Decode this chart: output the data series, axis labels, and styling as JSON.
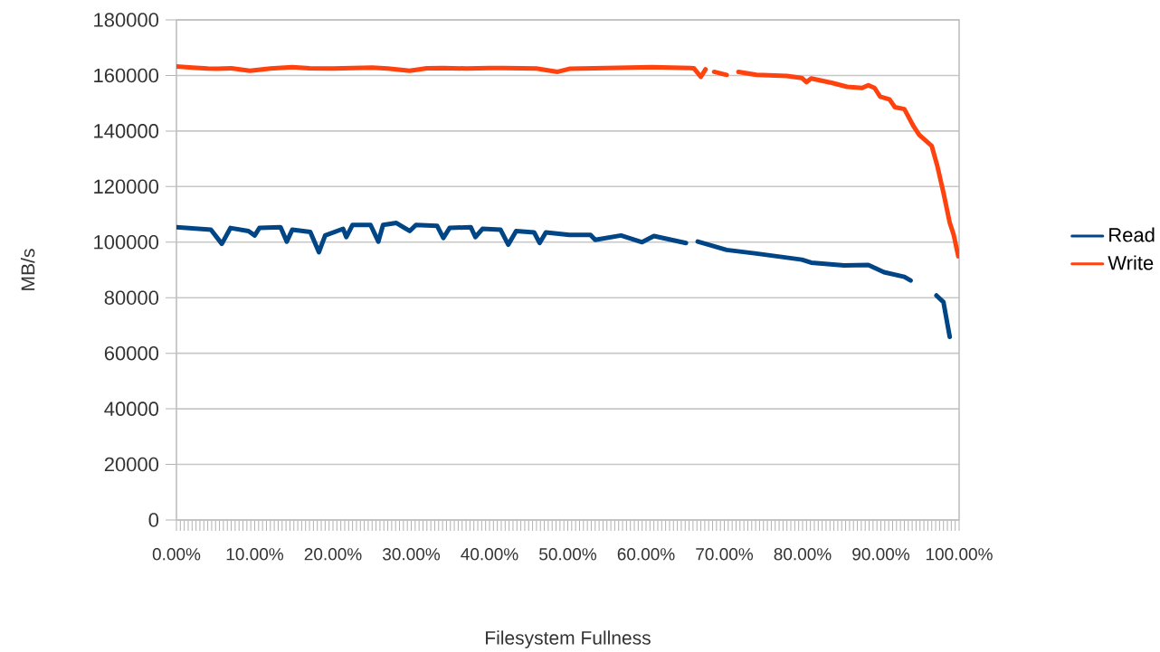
{
  "chart_data": {
    "type": "line",
    "xlabel": "Filesystem Fullness",
    "ylabel": "MB/s",
    "xlim": [
      0,
      100
    ],
    "ylim": [
      0,
      180000
    ],
    "xticks": [
      {
        "value": 0,
        "label": "0.00%"
      },
      {
        "value": 10,
        "label": "10.00%"
      },
      {
        "value": 20,
        "label": "20.00%"
      },
      {
        "value": 30,
        "label": "30.00%"
      },
      {
        "value": 40,
        "label": "40.00%"
      },
      {
        "value": 50,
        "label": "50.00%"
      },
      {
        "value": 60,
        "label": "60.00%"
      },
      {
        "value": 70,
        "label": "70.00%"
      },
      {
        "value": 80,
        "label": "80.00%"
      },
      {
        "value": 90,
        "label": "90.00%"
      },
      {
        "value": 100,
        "label": "100.00%"
      }
    ],
    "yticks": [
      0,
      20000,
      40000,
      60000,
      80000,
      100000,
      120000,
      140000,
      160000,
      180000
    ],
    "grid": "y",
    "legend": "right",
    "line_style": "solid",
    "series": [
      {
        "name": "Read",
        "color": "#004586",
        "x": [
          0,
          4.4,
          5.8,
          6.9,
          9.2,
          10.0,
          10.6,
          13.3,
          14.1,
          14.8,
          17.1,
          18.2,
          19.0,
          21.3,
          21.7,
          22.5,
          24.8,
          25.8,
          26.4,
          28.1,
          29.8,
          30.6,
          33.3,
          34.1,
          34.9,
          37.6,
          38.2,
          39.1,
          41.4,
          42.4,
          43.4,
          45.7,
          46.4,
          47.2,
          50.2,
          52.9,
          53.5,
          56.8,
          59.5,
          61.0,
          65.1,
          65.8,
          66.6,
          70.3,
          74.1,
          79.9,
          81.1,
          85.3,
          88.4,
          90.4,
          93.0,
          93.8,
          95.5,
          97.1,
          98.0,
          98.8
        ],
        "values": [
          105400,
          104500,
          99400,
          105100,
          104000,
          102400,
          105100,
          105400,
          100200,
          104500,
          103700,
          96400,
          102400,
          104800,
          101800,
          106200,
          106200,
          100200,
          106200,
          106900,
          104000,
          106200,
          105900,
          101500,
          105100,
          105400,
          101800,
          104800,
          104500,
          99100,
          104000,
          103500,
          99700,
          103500,
          102600,
          102600,
          100800,
          102400,
          100000,
          102200,
          99700,
          null,
          100200,
          97200,
          95900,
          93700,
          92600,
          91600,
          91800,
          89200,
          87500,
          86200,
          null,
          80800,
          78400,
          65900
        ]
      },
      {
        "name": "Write",
        "color": "#ff420e",
        "x": [
          0,
          2,
          4,
          5.2,
          7,
          9.4,
          12,
          14.8,
          17,
          20,
          22.5,
          25,
          27,
          29.8,
          32,
          34.1,
          37,
          40,
          41.8,
          44,
          46,
          48.7,
          50.2,
          54.9,
          60.7,
          66.1,
          67.0,
          67.6,
          68.1,
          68.7,
          70.3,
          71.0,
          71.8,
          74.1,
          78.0,
          79.9,
          80.5,
          81.1,
          83.8,
          85.7,
          87.6,
          88.4,
          89.2,
          89.9,
          91.1,
          91.8,
          93.0,
          94.2,
          94.9,
          96.5,
          97.2,
          98.0,
          98.8,
          99.3,
          99.9
        ],
        "values": [
          163200,
          162800,
          162500,
          162400,
          162600,
          161700,
          162500,
          163000,
          162600,
          162500,
          162700,
          162800,
          162500,
          161700,
          162600,
          162700,
          162500,
          162700,
          162700,
          162600,
          162500,
          161300,
          162400,
          162700,
          163000,
          162600,
          159500,
          162200,
          null,
          161300,
          160200,
          null,
          161300,
          160200,
          159800,
          159100,
          157600,
          158900,
          157300,
          155900,
          155500,
          156500,
          155500,
          152400,
          151400,
          148600,
          147900,
          141600,
          138600,
          134600,
          127600,
          117800,
          107000,
          102700,
          94900
        ]
      }
    ]
  }
}
